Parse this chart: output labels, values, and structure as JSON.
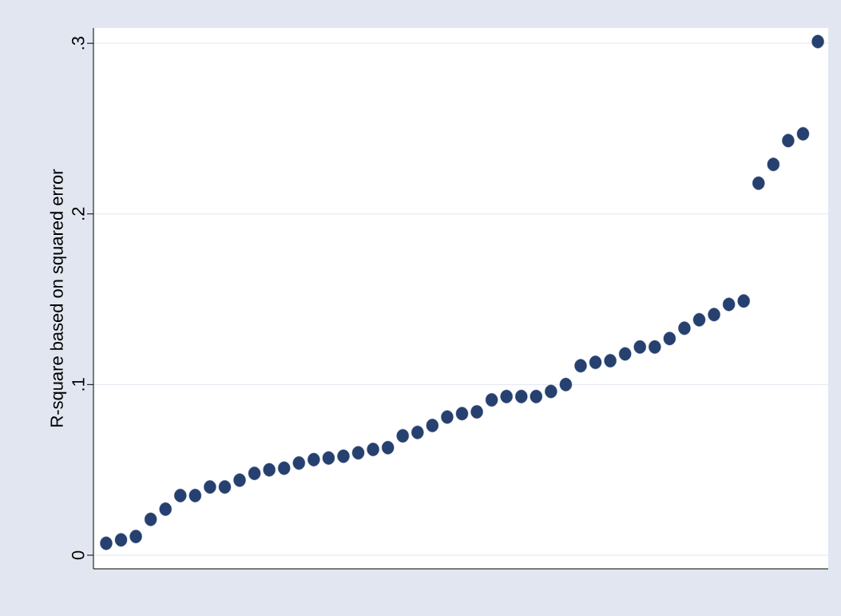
{
  "chart_data": {
    "type": "scatter",
    "ylabel": "R-square based on squared error",
    "categories": [
      null,
      null,
      null,
      null,
      null,
      null,
      null,
      null,
      null,
      null,
      null,
      null,
      null,
      null,
      null,
      null,
      null,
      null,
      null,
      null,
      null,
      null,
      null,
      null,
      null,
      null,
      null,
      null,
      null,
      null,
      null,
      null,
      null,
      null,
      null,
      null,
      null,
      null,
      null,
      null,
      null,
      null,
      null,
      null,
      null,
      null,
      null,
      null,
      null
    ],
    "values": [
      0.007,
      0.009,
      0.011,
      0.021,
      0.027,
      0.035,
      0.035,
      0.04,
      0.04,
      0.044,
      0.048,
      0.05,
      0.051,
      0.054,
      0.056,
      0.057,
      0.058,
      0.06,
      0.062,
      0.063,
      0.07,
      0.072,
      0.076,
      0.081,
      0.083,
      0.084,
      0.091,
      0.093,
      0.093,
      0.093,
      0.096,
      0.1,
      0.111,
      0.113,
      0.114,
      0.118,
      0.122,
      0.122,
      0.127,
      0.133,
      0.138,
      0.141,
      0.147,
      0.149,
      0.218,
      0.229,
      0.243,
      0.247,
      0.301
    ],
    "color": "#26406f",
    "marker": "circle",
    "ylim": [
      -0.008,
      0.309
    ],
    "yticks": [
      0,
      {
        "value": 0.1,
        "label": ".1"
      },
      {
        "value": 0.2,
        "label": ".2"
      },
      {
        "value": 0.3,
        "label": ".3"
      }
    ],
    "grid": "y"
  }
}
